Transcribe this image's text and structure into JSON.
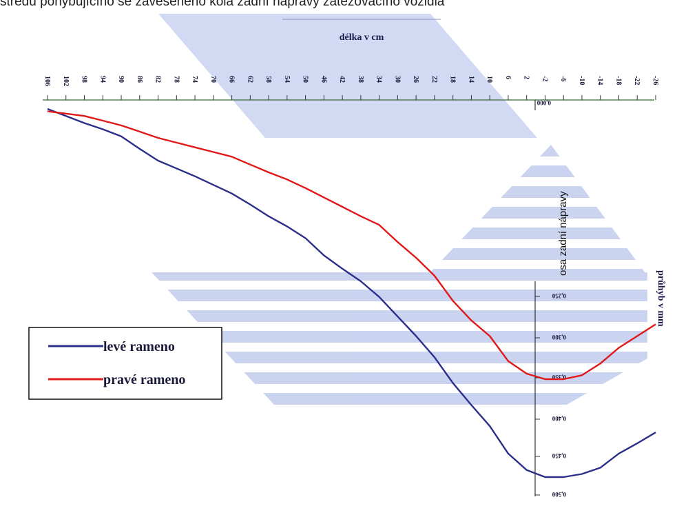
{
  "caption": "středu pohybujícího se zavěšeného kola zadní nápravy zatěžovacího vozidla",
  "chart_data": {
    "type": "line",
    "xlabel": "délka v cm",
    "ylabel": "průhyb v mm",
    "axis_annotation": "osa zadní nápravy",
    "x_ticks": [
      "106",
      "102",
      "98",
      "94",
      "90",
      "86",
      "82",
      "78",
      "74",
      "70",
      "66",
      "62",
      "58",
      "54",
      "50",
      "46",
      "42",
      "38",
      "34",
      "30",
      "26",
      "22",
      "18",
      "14",
      "10",
      "6",
      "2",
      "-2",
      "-6",
      "-10",
      "-14",
      "-18",
      "-22",
      "-26"
    ],
    "y_ticks": [
      "0,000",
      "0,250",
      "0,300",
      "0,350",
      "0,400",
      "0,450",
      "0,500"
    ],
    "xlim": [
      106,
      -26
    ],
    "ylim": [
      0.0,
      0.5
    ],
    "legend_position": "left",
    "series": [
      {
        "name": "levé rameno",
        "color": "#2b2f8a",
        "x": [
          106,
          102,
          98,
          94,
          90,
          86,
          82,
          78,
          74,
          70,
          66,
          62,
          58,
          54,
          50,
          46,
          42,
          38,
          34,
          30,
          26,
          22,
          18,
          14,
          10,
          6,
          2,
          -2,
          -6,
          -10,
          -14,
          -18,
          -22,
          -26
        ],
        "y": [
          0,
          0.009,
          0.018,
          0.026,
          0.035,
          0.051,
          0.066,
          0.076,
          0.086,
          0.097,
          0.108,
          0.122,
          0.137,
          0.15,
          0.165,
          0.187,
          0.204,
          0.22,
          0.24,
          0.265,
          0.29,
          0.317,
          0.35,
          0.378,
          0.405,
          0.44,
          0.461,
          0.47,
          0.47,
          0.466,
          0.458,
          0.44,
          0.427,
          0.413
        ]
      },
      {
        "name": "pravé rameno",
        "color": "#e01818",
        "x": [
          106,
          102,
          98,
          94,
          90,
          86,
          82,
          78,
          74,
          70,
          66,
          62,
          58,
          54,
          50,
          46,
          42,
          38,
          34,
          30,
          26,
          22,
          18,
          14,
          10,
          6,
          2,
          -2,
          -6,
          -10,
          -14,
          -18,
          -22,
          -26
        ],
        "y": [
          0.003,
          0.006,
          0.009,
          0.015,
          0.021,
          0.029,
          0.037,
          0.043,
          0.049,
          0.055,
          0.061,
          0.071,
          0.081,
          0.09,
          0.101,
          0.113,
          0.125,
          0.137,
          0.148,
          0.17,
          0.19,
          0.213,
          0.245,
          0.27,
          0.29,
          0.322,
          0.338,
          0.345,
          0.345,
          0.34,
          0.325,
          0.305,
          0.29,
          0.275
        ]
      }
    ]
  }
}
